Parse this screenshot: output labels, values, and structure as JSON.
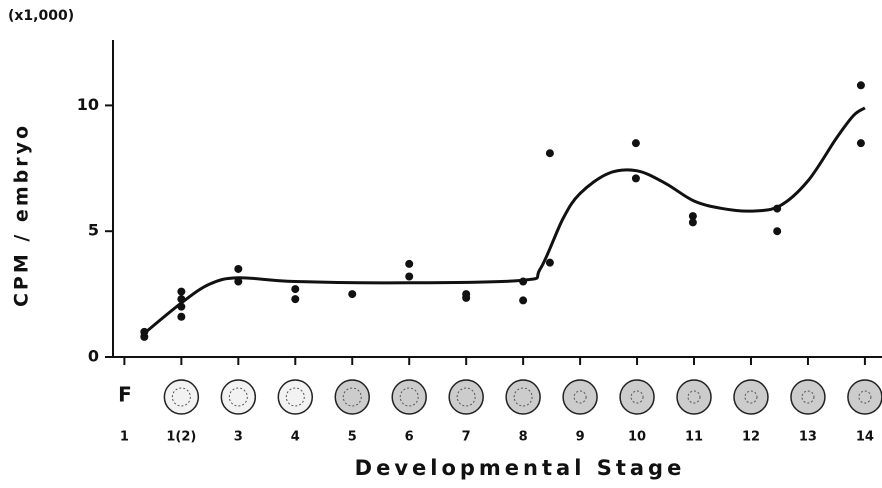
{
  "chart_data": {
    "type": "scatter",
    "y_label": "CPM / embryo",
    "y_multiplier": "(x1,000)",
    "x_label": "Developmental Stage",
    "fertilized_label": "F",
    "color": "#111111",
    "xlim": [
      -0.2,
      13.3
    ],
    "ylim": [
      0,
      12.6
    ],
    "yticks": [
      0,
      5,
      10
    ],
    "xticks": [
      {
        "value": 0,
        "label": "1"
      },
      {
        "value": 1,
        "label": "1(2)"
      },
      {
        "value": 2,
        "label": "3"
      },
      {
        "value": 3,
        "label": "4"
      },
      {
        "value": 4,
        "label": "5"
      },
      {
        "value": 5,
        "label": "6"
      },
      {
        "value": 6,
        "label": "7"
      },
      {
        "value": 7,
        "label": "8"
      },
      {
        "value": 8,
        "label": "9"
      },
      {
        "value": 9,
        "label": "10"
      },
      {
        "value": 10,
        "label": "11"
      },
      {
        "value": 11,
        "label": "12"
      },
      {
        "value": 12,
        "label": "13"
      },
      {
        "value": 13,
        "label": "14"
      }
    ],
    "points": {
      "x": [
        0.35,
        0.35,
        1,
        1,
        1,
        1,
        2,
        2,
        3,
        3,
        4,
        5,
        5,
        6,
        6,
        7,
        7,
        7.47,
        7.47,
        8.98,
        8.98,
        9.98,
        9.98,
        11.46,
        11.46,
        12.93,
        12.93
      ],
      "y": [
        0.8,
        1.0,
        2.6,
        2.3,
        2.0,
        1.6,
        3.5,
        3.0,
        2.7,
        2.3,
        2.5,
        3.7,
        3.2,
        2.5,
        2.35,
        3.0,
        2.25,
        8.1,
        3.75,
        8.5,
        7.1,
        5.6,
        5.35,
        5.9,
        5.0,
        10.8,
        8.5
      ]
    },
    "curve": {
      "x": [
        0.3,
        1,
        1.5,
        2,
        3,
        5,
        7,
        7.3,
        7.7,
        8,
        8.5,
        9,
        9.5,
        10,
        10.5,
        11,
        11.5,
        12,
        12.5,
        12.8,
        13
      ],
      "y": [
        0.85,
        2.15,
        2.9,
        3.15,
        3.0,
        2.95,
        3.05,
        3.5,
        5.5,
        6.5,
        7.3,
        7.4,
        6.9,
        6.2,
        5.9,
        5.8,
        6.0,
        7.0,
        8.7,
        9.6,
        9.9
      ]
    }
  }
}
